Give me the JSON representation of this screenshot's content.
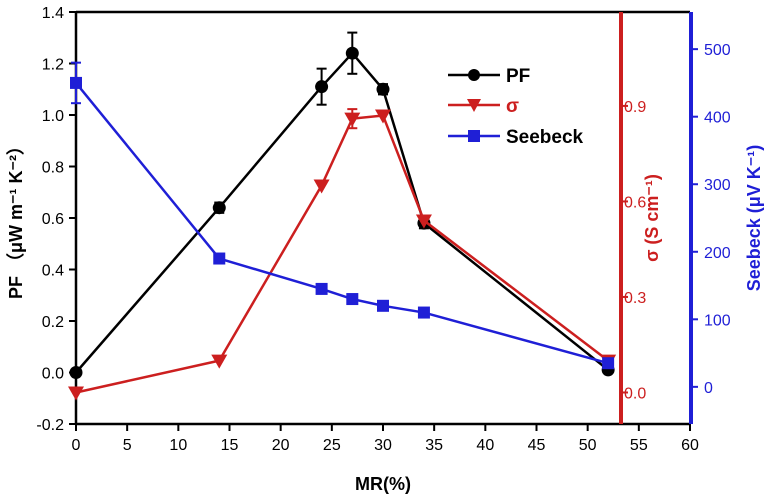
{
  "chart_data": {
    "type": "line",
    "x": [
      0,
      14,
      24,
      27,
      30,
      34,
      52
    ],
    "xlabel": "MR(%)",
    "xlim": [
      0,
      60
    ],
    "xticks": [
      0,
      5,
      10,
      15,
      20,
      25,
      30,
      35,
      40,
      45,
      50,
      55,
      60
    ],
    "axes": {
      "left": {
        "label_main": "PF",
        "label_units": "（μW m⁻¹ K⁻²）",
        "range": [
          -0.2,
          1.4
        ],
        "ticks": [
          -0.2,
          0.0,
          0.2,
          0.4,
          0.6,
          0.8,
          1.0,
          1.2,
          1.4
        ],
        "color": "#000000"
      },
      "right_inner": {
        "label": "σ (S cm⁻¹)",
        "range": [
          -0.099,
          1.195
        ],
        "ticks": [
          0.0,
          0.3,
          0.6,
          0.9
        ],
        "color": "#cc1f1f"
      },
      "right_outer": {
        "label": "Seebeck (μV K⁻¹)",
        "range": [
          -55,
          555
        ],
        "ticks": [
          0,
          100,
          200,
          300,
          400,
          500
        ],
        "color": "#1f1fd6"
      }
    },
    "series": [
      {
        "name": "PF",
        "axis": "left",
        "marker": "circle",
        "color": "#000000",
        "values": [
          0.0,
          0.64,
          1.11,
          1.24,
          1.1,
          0.58,
          0.01
        ],
        "errors": [
          0,
          0.02,
          0.07,
          0.08,
          0.02,
          0.02,
          0
        ]
      },
      {
        "name": "σ",
        "axis": "right_inner",
        "marker": "triangle-down",
        "color": "#cc1f1f",
        "values": [
          0.0,
          0.1,
          0.65,
          0.86,
          0.87,
          0.54,
          0.1
        ],
        "errors": [
          0,
          0,
          0,
          0.03,
          0,
          0,
          0
        ]
      },
      {
        "name": "Seebeck",
        "axis": "right_outer",
        "marker": "square",
        "color": "#1f1fd6",
        "values": [
          450,
          190,
          145,
          130,
          120,
          110,
          35
        ],
        "errors": [
          30,
          0,
          0,
          0,
          0,
          0,
          0
        ]
      }
    ],
    "legend": {
      "position": "top-right",
      "entries": [
        "PF",
        "σ",
        "Seebeck"
      ]
    }
  }
}
